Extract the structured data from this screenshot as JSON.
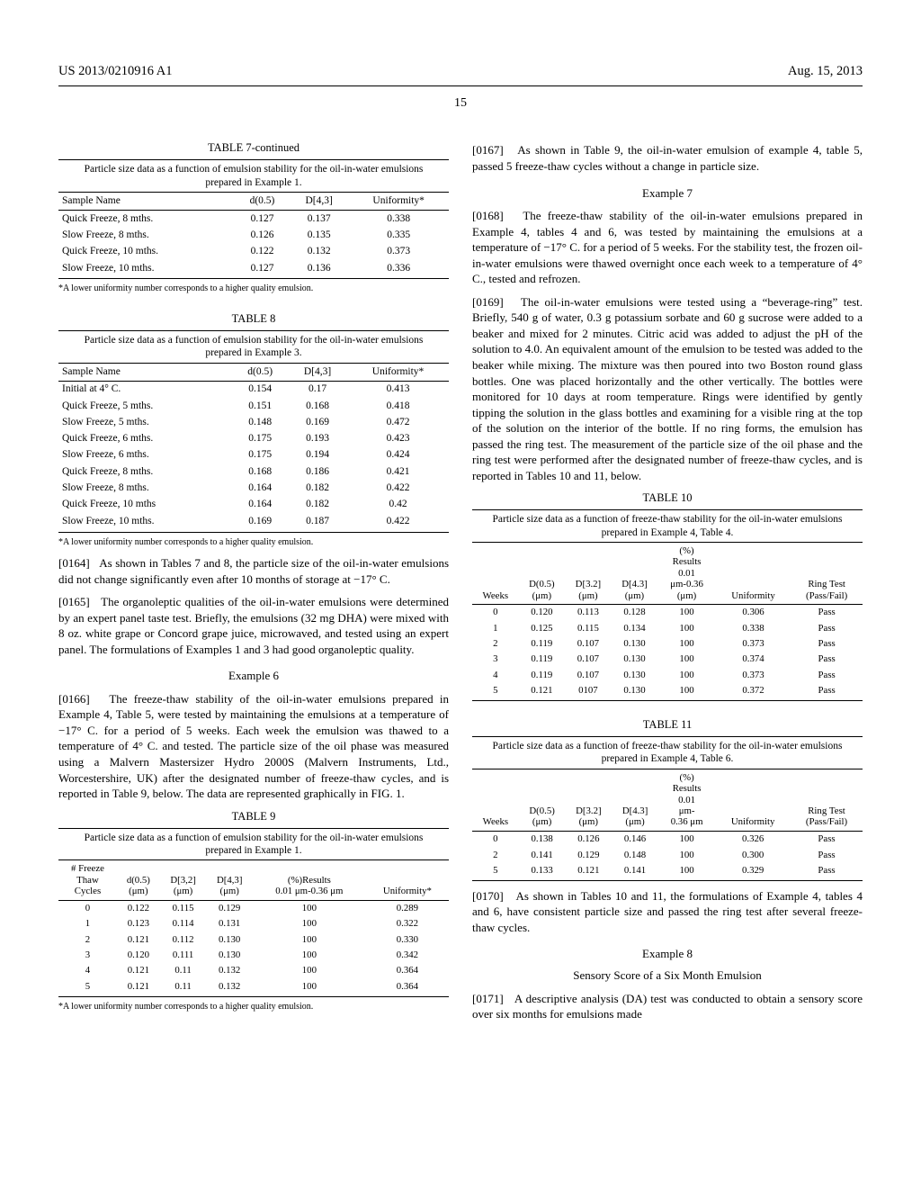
{
  "header": {
    "left": "US 2013/0210916 A1",
    "right": "Aug. 15, 2013",
    "page_number": "15"
  },
  "left": {
    "table7": {
      "title": "TABLE 7-continued",
      "caption": "Particle size data as a function of emulsion stability for the oil-in-water emulsions prepared in Example 1.",
      "headers": [
        "Sample Name",
        "d(0.5)",
        "D[4,3]",
        "Uniformity*"
      ],
      "rows": [
        [
          "Quick Freeze, 8 mths.",
          "0.127",
          "0.137",
          "0.338"
        ],
        [
          "Slow Freeze, 8 mths.",
          "0.126",
          "0.135",
          "0.335"
        ],
        [
          "Quick Freeze, 10 mths.",
          "0.122",
          "0.132",
          "0.373"
        ],
        [
          "Slow Freeze, 10 mths.",
          "0.127",
          "0.136",
          "0.336"
        ]
      ],
      "footnote": "*A lower uniformity number corresponds to a higher quality emulsion."
    },
    "table8": {
      "title": "TABLE 8",
      "caption": "Particle size data as a function of emulsion stability for the oil-in-water emulsions prepared in Example 3.",
      "headers": [
        "Sample Name",
        "d(0.5)",
        "D[4,3]",
        "Uniformity*"
      ],
      "rows": [
        [
          "Initial at 4° C.",
          "0.154",
          "0.17",
          "0.413"
        ],
        [
          "Quick Freeze, 5 mths.",
          "0.151",
          "0.168",
          "0.418"
        ],
        [
          "Slow Freeze, 5 mths.",
          "0.148",
          "0.169",
          "0.472"
        ],
        [
          "Quick Freeze, 6 mths.",
          "0.175",
          "0.193",
          "0.423"
        ],
        [
          "Slow Freeze, 6 mths.",
          "0.175",
          "0.194",
          "0.424"
        ],
        [
          "Quick Freeze, 8 mths.",
          "0.168",
          "0.186",
          "0.421"
        ],
        [
          "Slow Freeze, 8 mths.",
          "0.164",
          "0.182",
          "0.422"
        ],
        [
          "Quick Freeze, 10 mths",
          "0.164",
          "0.182",
          "0.42"
        ],
        [
          "Slow Freeze, 10 mths.",
          "0.169",
          "0.187",
          "0.422"
        ]
      ],
      "footnote": "*A lower uniformity number corresponds to a higher quality emulsion."
    },
    "para0164": {
      "num": "[0164]",
      "text": "As shown in Tables 7 and 8, the particle size of the oil-in-water emulsions did not change significantly even after 10 months of storage at −17° C."
    },
    "para0165": {
      "num": "[0165]",
      "text": "The organoleptic qualities of the oil-in-water emulsions were determined by an expert panel taste test. Briefly, the emulsions (32 mg DHA) were mixed with 8 oz. white grape or Concord grape juice, microwaved, and tested using an expert panel. The formulations of Examples 1 and 3 had good organoleptic quality."
    },
    "example6": "Example 6",
    "para0166": {
      "num": "[0166]",
      "text": "The freeze-thaw stability of the oil-in-water emulsions prepared in Example 4, Table 5, were tested by maintaining the emulsions at a temperature of −17° C. for a period of 5 weeks. Each week the emulsion was thawed to a temperature of 4° C. and tested. The particle size of the oil phase was measured using a Malvern Mastersizer Hydro 2000S (Malvern Instruments, Ltd., Worcestershire, UK) after the designated number of freeze-thaw cycles, and is reported in Table 9, below. The data are represented graphically in FIG. 1."
    },
    "table9": {
      "title": "TABLE 9",
      "caption": "Particle size data as a function of emulsion stability for the oil-in-water emulsions prepared in Example 1.",
      "headers": [
        "# Freeze Thaw Cycles",
        "d(0.5) (μm)",
        "D[3,2] (μm)",
        "D[4,3] (μm)",
        "(%)Results 0.01 μm-0.36 μm",
        "Uniformity*"
      ],
      "rows": [
        [
          "0",
          "0.122",
          "0.115",
          "0.129",
          "100",
          "0.289"
        ],
        [
          "1",
          "0.123",
          "0.114",
          "0.131",
          "100",
          "0.322"
        ],
        [
          "2",
          "0.121",
          "0.112",
          "0.130",
          "100",
          "0.330"
        ],
        [
          "3",
          "0.120",
          "0.111",
          "0.130",
          "100",
          "0.342"
        ],
        [
          "4",
          "0.121",
          "0.11",
          "0.132",
          "100",
          "0.364"
        ],
        [
          "5",
          "0.121",
          "0.11",
          "0.132",
          "100",
          "0.364"
        ]
      ],
      "footnote": "*A lower uniformity number corresponds to a higher quality emulsion."
    }
  },
  "right": {
    "para0167": {
      "num": "[0167]",
      "text": "As shown in Table 9, the oil-in-water emulsion of example 4, table 5, passed 5 freeze-thaw cycles without a change in particle size."
    },
    "example7": "Example 7",
    "para0168": {
      "num": "[0168]",
      "text": "The freeze-thaw stability of the oil-in-water emulsions prepared in Example 4, tables 4 and 6, was tested by maintaining the emulsions at a temperature of −17° C. for a period of 5 weeks. For the stability test, the frozen oil-in-water emulsions were thawed overnight once each week to a temperature of 4° C., tested and refrozen."
    },
    "para0169": {
      "num": "[0169]",
      "text": "The oil-in-water emulsions were tested using a “beverage-ring” test. Briefly, 540 g of water, 0.3 g potassium sorbate and 60 g sucrose were added to a beaker and mixed for 2 minutes. Citric acid was added to adjust the pH of the solution to 4.0. An equivalent amount of the emulsion to be tested was added to the beaker while mixing. The mixture was then poured into two Boston round glass bottles. One was placed horizontally and the other vertically. The bottles were monitored for 10 days at room temperature. Rings were identified by gently tipping the solution in the glass bottles and examining for a visible ring at the top of the solution on the interior of the bottle. If no ring forms, the emulsion has passed the ring test. The measurement of the particle size of the oil phase and the ring test were performed after the designated number of freeze-thaw cycles, and is reported in Tables 10 and 11, below."
    },
    "table10": {
      "title": "TABLE 10",
      "caption": "Particle size data as a function of freeze-thaw stability for the oil-in-water emulsions prepared in Example 4, Table 4.",
      "headers": [
        "Weeks",
        "D(0.5) (μm)",
        "D[3.2] (μm)",
        "D[4.3] (μm)",
        "(%) Results 0.01 μm-0.36 (μm)",
        "Uniformity",
        "Ring Test (Pass/Fail)"
      ],
      "rows": [
        [
          "0",
          "0.120",
          "0.113",
          "0.128",
          "100",
          "0.306",
          "Pass"
        ],
        [
          "1",
          "0.125",
          "0.115",
          "0.134",
          "100",
          "0.338",
          "Pass"
        ],
        [
          "2",
          "0.119",
          "0.107",
          "0.130",
          "100",
          "0.373",
          "Pass"
        ],
        [
          "3",
          "0.119",
          "0.107",
          "0.130",
          "100",
          "0.374",
          "Pass"
        ],
        [
          "4",
          "0.119",
          "0.107",
          "0.130",
          "100",
          "0.373",
          "Pass"
        ],
        [
          "5",
          "0.121",
          "0107",
          "0.130",
          "100",
          "0.372",
          "Pass"
        ]
      ]
    },
    "table11": {
      "title": "TABLE 11",
      "caption": "Particle size data as a function of freeze-thaw stability for the oil-in-water emulsions prepared in Example 4, Table 6.",
      "headers": [
        "Weeks",
        "D(0.5) (μm)",
        "D[3.2] (μm)",
        "D[4.3] (μm)",
        "(%) Results 0.01 μm- 0.36 μm",
        "Uniformity",
        "Ring Test (Pass/Fail)"
      ],
      "rows": [
        [
          "0",
          "0.138",
          "0.126",
          "0.146",
          "100",
          "0.326",
          "Pass"
        ],
        [
          "2",
          "0.141",
          "0.129",
          "0.148",
          "100",
          "0.300",
          "Pass"
        ],
        [
          "5",
          "0.133",
          "0.121",
          "0.141",
          "100",
          "0.329",
          "Pass"
        ]
      ]
    },
    "para0170": {
      "num": "[0170]",
      "text": "As shown in Tables 10 and 11, the formulations of Example 4, tables 4 and 6, have consistent particle size and passed the ring test after several freeze-thaw cycles."
    },
    "example8": "Example 8",
    "example8_sub": "Sensory Score of a Six Month Emulsion",
    "para0171": {
      "num": "[0171]",
      "text": "A descriptive analysis (DA) test was conducted to obtain a sensory score over six months for emulsions made"
    }
  }
}
